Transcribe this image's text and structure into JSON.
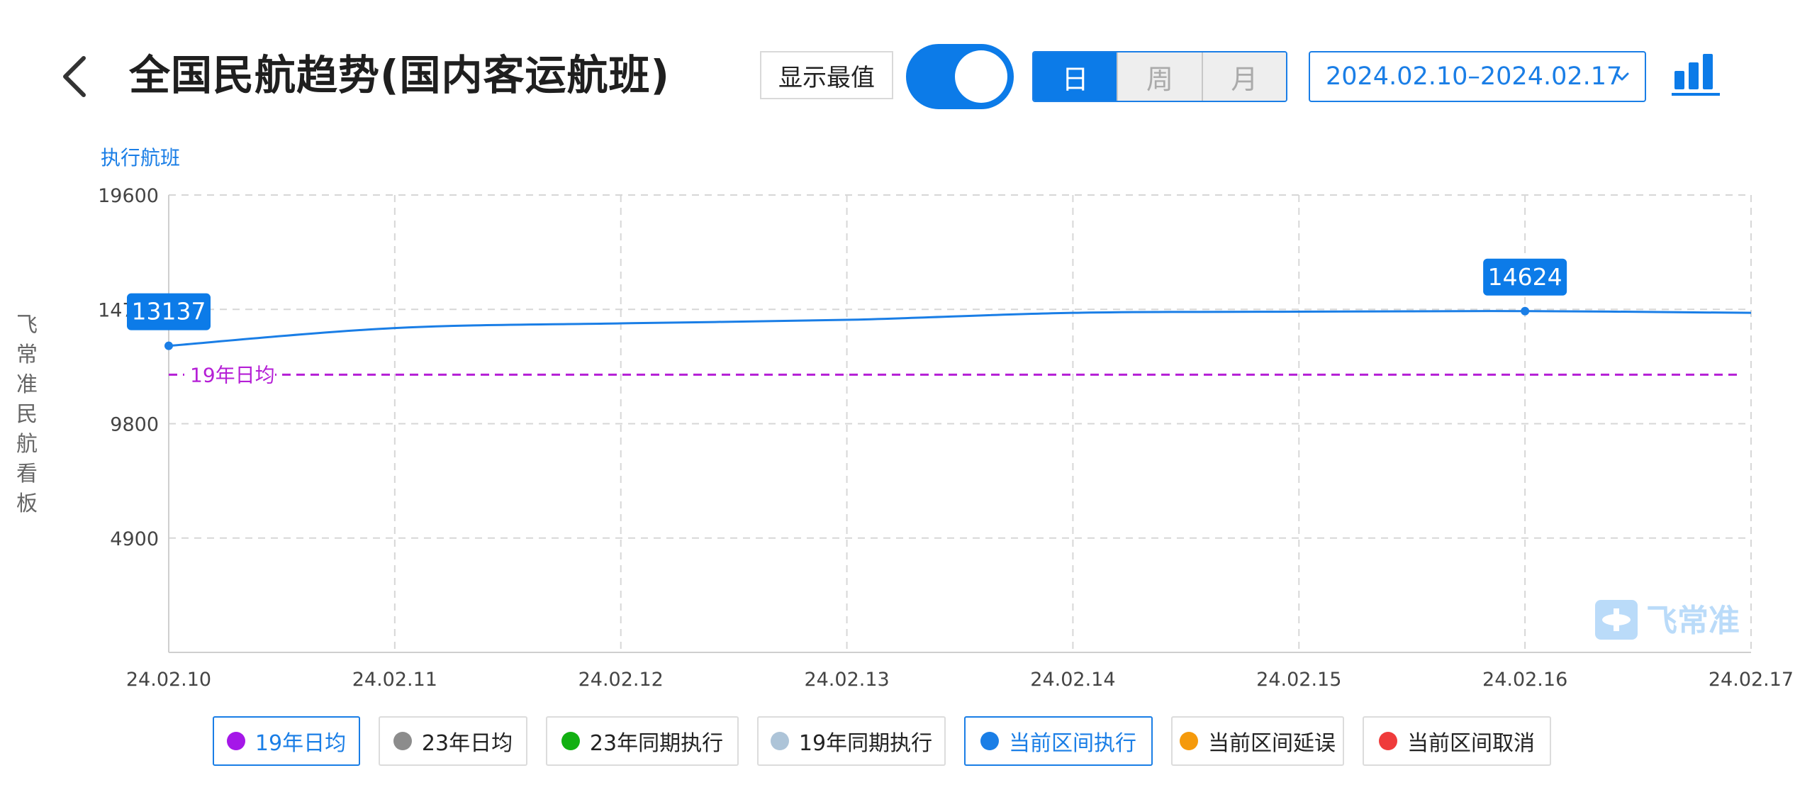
{
  "header": {
    "title": "全国民航趋势(国内客运航班)",
    "show_extreme_label": "显示最值",
    "show_extreme_on": true,
    "period_tabs": [
      {
        "label": "日",
        "active": true
      },
      {
        "label": "周",
        "active": false
      },
      {
        "label": "月",
        "active": false
      }
    ],
    "date_range": "2024.02.10–2024.02.17",
    "icons": {
      "back": "chevron-left-icon",
      "date_dropdown": "chevron-down-icon",
      "chart_type": "bar-chart-icon"
    }
  },
  "side_label": "飞常准民航看板",
  "watermark": "飞常准",
  "colors": {
    "accent": "#0c7be8",
    "series_current": "#1a7ee6",
    "ref_2019": "#b51fd6",
    "grid": "#d7d7d7"
  },
  "chart_data": {
    "type": "line",
    "ylabel": "执行航班",
    "ylim": [
      0,
      19600
    ],
    "yticks": [
      "4900",
      "9800",
      "14700",
      "19600"
    ],
    "x": [
      "24.02.10",
      "24.02.11",
      "24.02.12",
      "24.02.13",
      "24.02.14",
      "24.02.15",
      "24.02.16",
      "24.02.17"
    ],
    "series": [
      {
        "name": "当前区间执行",
        "values": [
          13137,
          13900,
          14100,
          14250,
          14550,
          14600,
          14624,
          14550
        ],
        "color": "#1a7ee6"
      }
    ],
    "reference_lines": [
      {
        "name": "19年日均",
        "value": 11900,
        "color": "#b51fd6",
        "style": "dashed"
      }
    ],
    "annotations": [
      {
        "text": "13137",
        "x": "24.02.10",
        "value": 13137,
        "kind": "min"
      },
      {
        "text": "14624",
        "x": "24.02.16",
        "value": 14624,
        "kind": "max"
      }
    ],
    "grid": true,
    "legend_position": "bottom"
  },
  "legend": [
    {
      "label": "19年日均",
      "color": "#a517e8",
      "active": true
    },
    {
      "label": "23年日均",
      "color": "#8c8c8c",
      "active": false
    },
    {
      "label": "23年同期执行",
      "color": "#12b012",
      "active": false
    },
    {
      "label": "19年同期执行",
      "color": "#adc4d8",
      "active": false
    },
    {
      "label": "当前区间执行",
      "color": "#1a7ee6",
      "active": true
    },
    {
      "label": "当前区间延误",
      "color": "#f59a0c",
      "active": false
    },
    {
      "label": "当前区间取消",
      "color": "#ef3b3b",
      "active": false
    }
  ]
}
